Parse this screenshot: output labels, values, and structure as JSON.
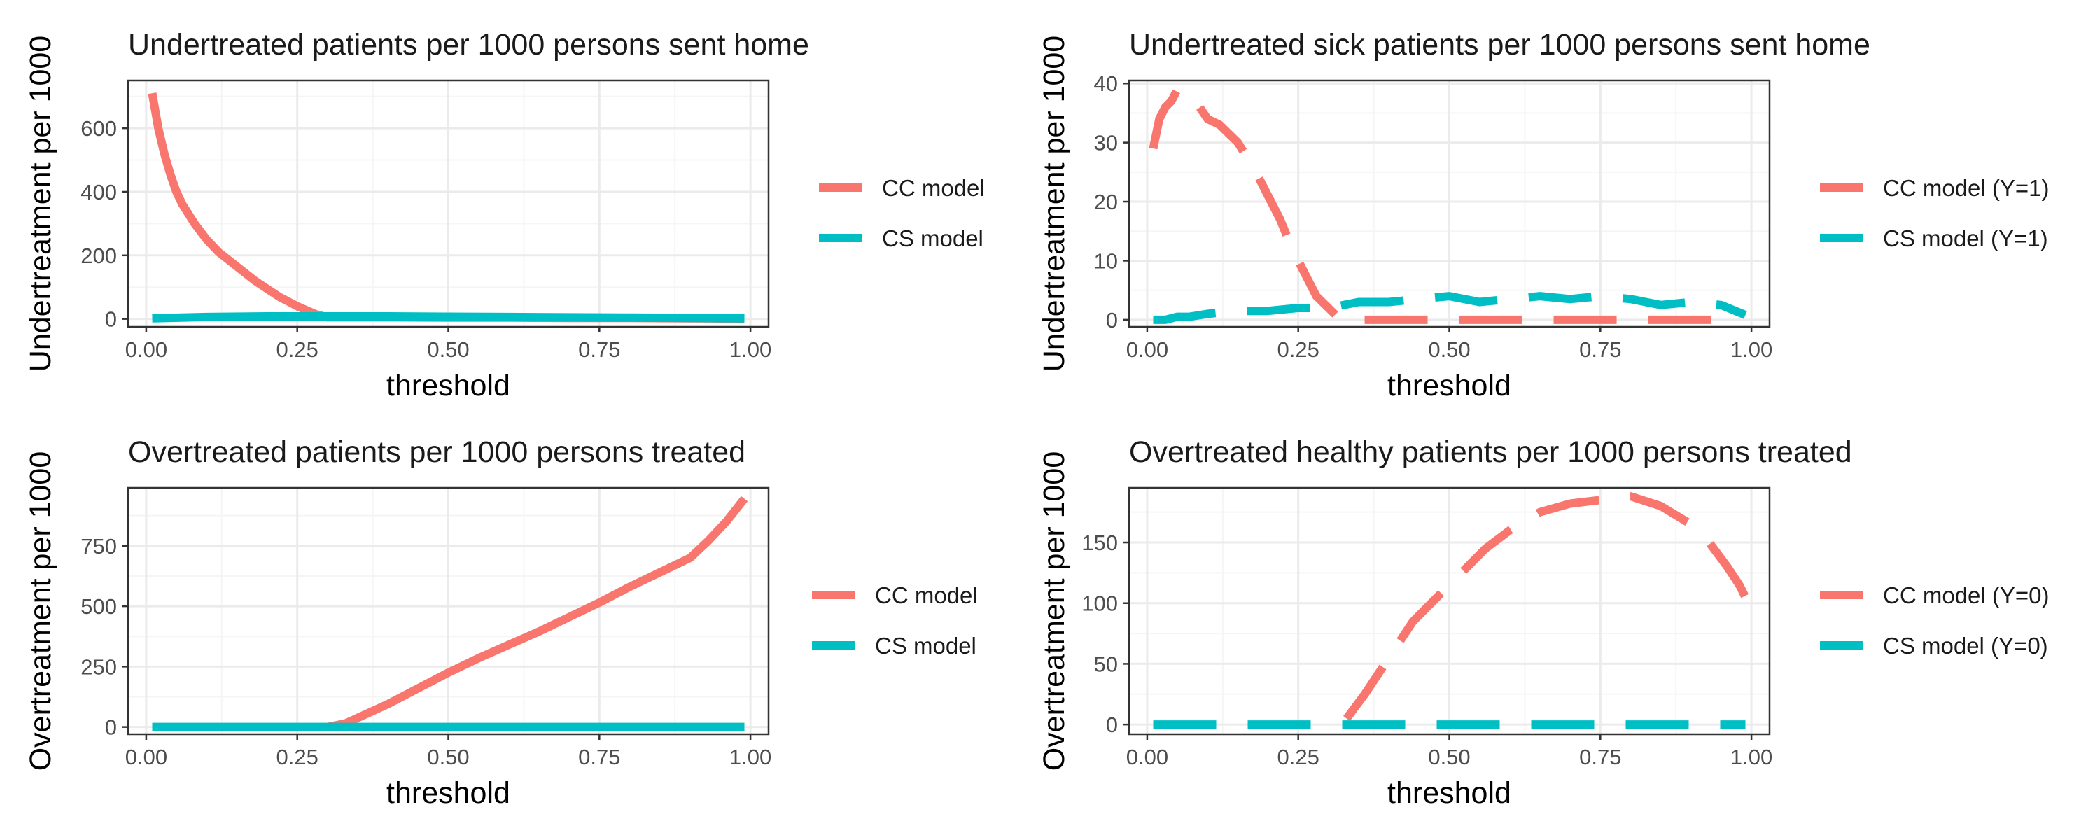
{
  "colors": {
    "cc": "#F8766D",
    "cs": "#00BFC4",
    "grid_major": "#ebebeb",
    "grid_minor": "#f5f5f5",
    "panel_border": "#333333"
  },
  "chart_data": [
    {
      "type": "line",
      "title": "Undertreated patients per 1000 persons sent home",
      "xlabel": "threshold",
      "ylabel": "Undertreatment per 1000",
      "xlim": [
        -0.03,
        1.03
      ],
      "ylim": [
        -25,
        750
      ],
      "xticks": [
        0,
        0.25,
        0.5,
        0.75,
        1
      ],
      "xtick_labels": [
        "0.00",
        "0.25",
        "0.50",
        "0.75",
        "1.00"
      ],
      "yticks": [
        0,
        200,
        400,
        600
      ],
      "ytick_labels": [
        "0",
        "200",
        "400",
        "600"
      ],
      "legend_position": "right",
      "grid": true,
      "series": [
        {
          "name": "CC model",
          "color_key": "cc",
          "dash": "solid",
          "x": [
            0.01,
            0.02,
            0.03,
            0.04,
            0.05,
            0.06,
            0.08,
            0.1,
            0.12,
            0.15,
            0.18,
            0.2,
            0.22,
            0.25,
            0.28,
            0.3,
            0.35,
            0.4,
            0.5,
            0.6,
            0.7,
            0.8,
            0.9,
            0.99
          ],
          "y": [
            710,
            600,
            520,
            455,
            400,
            360,
            300,
            250,
            210,
            165,
            120,
            95,
            70,
            40,
            15,
            5,
            5,
            5,
            4,
            4,
            3,
            3,
            2,
            1
          ]
        },
        {
          "name": "CS model",
          "color_key": "cs",
          "dash": "solid",
          "x": [
            0.01,
            0.1,
            0.2,
            0.3,
            0.4,
            0.5,
            0.6,
            0.7,
            0.8,
            0.9,
            0.99
          ],
          "y": [
            2,
            6,
            8,
            8,
            8,
            7,
            6,
            5,
            4,
            3,
            2
          ]
        }
      ]
    },
    {
      "type": "line",
      "title": "Undertreated sick patients per 1000 persons sent home",
      "xlabel": "threshold",
      "ylabel": "Undertreatment per 1000",
      "xlim": [
        -0.03,
        1.03
      ],
      "ylim": [
        -1.2,
        40.5
      ],
      "xticks": [
        0,
        0.25,
        0.5,
        0.75,
        1
      ],
      "xtick_labels": [
        "0.00",
        "0.25",
        "0.50",
        "0.75",
        "1.00"
      ],
      "yticks": [
        0,
        10,
        20,
        30,
        40
      ],
      "ytick_labels": [
        "0",
        "10",
        "20",
        "30",
        "40"
      ],
      "legend_position": "right",
      "grid": true,
      "series": [
        {
          "name": "CC model (Y=1)",
          "color_key": "cc",
          "dash": "long",
          "x": [
            0.01,
            0.02,
            0.03,
            0.04,
            0.05,
            0.06,
            0.08,
            0.1,
            0.12,
            0.15,
            0.18,
            0.2,
            0.22,
            0.24,
            0.26,
            0.28,
            0.3,
            0.32,
            0.4,
            0.5,
            0.6,
            0.7,
            0.8,
            0.9,
            0.95
          ],
          "y": [
            29,
            34,
            36,
            37,
            39,
            38,
            37,
            34,
            33,
            30,
            25,
            21,
            17,
            12,
            8,
            4,
            2,
            0,
            0,
            0,
            0,
            0,
            0,
            0,
            0
          ]
        },
        {
          "name": "CS model (Y=1)",
          "color_key": "cs",
          "dash": "long",
          "x": [
            0.01,
            0.03,
            0.05,
            0.07,
            0.1,
            0.15,
            0.2,
            0.25,
            0.3,
            0.35,
            0.4,
            0.45,
            0.5,
            0.55,
            0.6,
            0.65,
            0.7,
            0.75,
            0.8,
            0.85,
            0.9,
            0.95,
            0.99
          ],
          "y": [
            0,
            0,
            0.5,
            0.5,
            1,
            1.5,
            1.5,
            2,
            2,
            3,
            3,
            3.5,
            4,
            3,
            3.5,
            4,
            3.5,
            4,
            3.5,
            2.5,
            3,
            2.5,
            0.8
          ]
        }
      ]
    },
    {
      "type": "line",
      "title": "Overtreated patients per 1000 persons treated",
      "xlabel": "threshold",
      "ylabel": "Overtreatment per 1000",
      "xlim": [
        -0.03,
        1.03
      ],
      "ylim": [
        -30,
        990
      ],
      "xticks": [
        0,
        0.25,
        0.5,
        0.75,
        1
      ],
      "xtick_labels": [
        "0.00",
        "0.25",
        "0.50",
        "0.75",
        "1.00"
      ],
      "yticks": [
        0,
        250,
        500,
        750
      ],
      "ytick_labels": [
        "0",
        "250",
        "500",
        "750"
      ],
      "legend_position": "right",
      "grid": true,
      "series": [
        {
          "name": "CC model",
          "color_key": "cc",
          "dash": "solid",
          "x": [
            0.3,
            0.33,
            0.4,
            0.45,
            0.5,
            0.55,
            0.6,
            0.65,
            0.7,
            0.75,
            0.8,
            0.85,
            0.9,
            0.93,
            0.96,
            0.99
          ],
          "y": [
            0,
            15,
            95,
            160,
            225,
            285,
            340,
            395,
            455,
            515,
            580,
            640,
            700,
            770,
            850,
            945
          ]
        },
        {
          "name": "CS model",
          "color_key": "cs",
          "dash": "solid",
          "x": [
            0.01,
            0.99
          ],
          "y": [
            0,
            0
          ]
        }
      ]
    },
    {
      "type": "line",
      "title": "Overtreated healthy patients per 1000 persons treated",
      "xlabel": "threshold",
      "ylabel": "Overtreatment per 1000",
      "xlim": [
        -0.03,
        1.03
      ],
      "ylim": [
        -8,
        195
      ],
      "xticks": [
        0,
        0.25,
        0.5,
        0.75,
        1
      ],
      "xtick_labels": [
        "0.00",
        "0.25",
        "0.50",
        "0.75",
        "1.00"
      ],
      "yticks": [
        0,
        50,
        100,
        150
      ],
      "ytick_labels": [
        "0",
        "50",
        "100",
        "150"
      ],
      "legend_position": "right",
      "grid": true,
      "series": [
        {
          "name": "CC model (Y=0)",
          "color_key": "cc",
          "dash": "long",
          "x": [
            0.33,
            0.36,
            0.4,
            0.44,
            0.48,
            0.52,
            0.56,
            0.6,
            0.65,
            0.7,
            0.75,
            0.8,
            0.85,
            0.9,
            0.93,
            0.96,
            0.98,
            0.99
          ],
          "y": [
            5,
            25,
            55,
            85,
            105,
            125,
            145,
            160,
            175,
            182,
            185,
            188,
            180,
            165,
            150,
            130,
            115,
            105
          ]
        },
        {
          "name": "CS model (Y=0)",
          "color_key": "cs",
          "dash": "long",
          "x": [
            0.01,
            0.99
          ],
          "y": [
            0,
            0
          ]
        }
      ]
    }
  ]
}
